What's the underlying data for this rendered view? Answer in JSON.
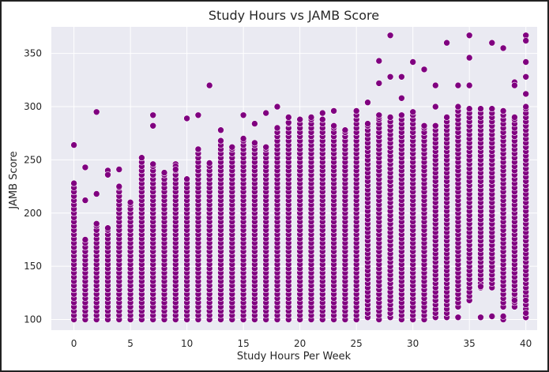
{
  "chart_data": {
    "type": "scatter",
    "title": "Study Hours vs JAMB Score",
    "xlabel": "Study Hours Per Week",
    "ylabel": "JAMB Score",
    "xlim": [
      -2,
      41
    ],
    "ylim": [
      90,
      375
    ],
    "xticks": [
      0,
      5,
      10,
      15,
      20,
      25,
      30,
      35,
      40
    ],
    "yticks": [
      100,
      150,
      200,
      250,
      300,
      350
    ],
    "grid": true,
    "background": "#eaeaf2",
    "gridColor": "#ffffff",
    "markerColor": "#800080",
    "series": [
      {
        "name": "",
        "columns": [
          {
            "x": 0,
            "min": 100,
            "max": 228
          },
          {
            "x": 1,
            "min": 100,
            "max": 175
          },
          {
            "x": 2,
            "min": 100,
            "max": 190
          },
          {
            "x": 3,
            "min": 100,
            "max": 186
          },
          {
            "x": 4,
            "min": 100,
            "max": 225
          },
          {
            "x": 5,
            "min": 100,
            "max": 210
          },
          {
            "x": 6,
            "min": 100,
            "max": 252
          },
          {
            "x": 7,
            "min": 100,
            "max": 246
          },
          {
            "x": 8,
            "min": 100,
            "max": 238
          },
          {
            "x": 9,
            "min": 100,
            "max": 246
          },
          {
            "x": 10,
            "min": 100,
            "max": 232
          },
          {
            "x": 11,
            "min": 100,
            "max": 260
          },
          {
            "x": 12,
            "min": 100,
            "max": 247
          },
          {
            "x": 13,
            "min": 100,
            "max": 268
          },
          {
            "x": 14,
            "min": 100,
            "max": 262
          },
          {
            "x": 15,
            "min": 100,
            "max": 270
          },
          {
            "x": 16,
            "min": 100,
            "max": 266
          },
          {
            "x": 17,
            "min": 100,
            "max": 262
          },
          {
            "x": 18,
            "min": 100,
            "max": 280
          },
          {
            "x": 19,
            "min": 100,
            "max": 285
          },
          {
            "x": 20,
            "min": 100,
            "max": 288
          },
          {
            "x": 21,
            "min": 100,
            "max": 290
          },
          {
            "x": 22,
            "min": 100,
            "max": 288
          },
          {
            "x": 23,
            "min": 100,
            "max": 282
          },
          {
            "x": 24,
            "min": 100,
            "max": 278
          },
          {
            "x": 25,
            "min": 100,
            "max": 292
          },
          {
            "x": 26,
            "min": 102,
            "max": 284
          },
          {
            "x": 27,
            "min": 100,
            "max": 290
          },
          {
            "x": 28,
            "min": 102,
            "max": 290
          },
          {
            "x": 29,
            "min": 100,
            "max": 292
          },
          {
            "x": 30,
            "min": 100,
            "max": 295
          },
          {
            "x": 31,
            "min": 100,
            "max": 282
          },
          {
            "x": 32,
            "min": 102,
            "max": 282
          },
          {
            "x": 33,
            "min": 102,
            "max": 290
          },
          {
            "x": 34,
            "min": 112,
            "max": 300
          },
          {
            "x": 35,
            "min": 118,
            "max": 298
          },
          {
            "x": 36,
            "min": 130,
            "max": 298
          },
          {
            "x": 37,
            "min": 130,
            "max": 298
          },
          {
            "x": 38,
            "min": 112,
            "max": 296
          },
          {
            "x": 39,
            "min": 112,
            "max": 290
          },
          {
            "x": 40,
            "min": 102,
            "max": 300
          }
        ],
        "extra_points": [
          [
            0,
            264
          ],
          [
            1,
            243
          ],
          [
            1,
            212
          ],
          [
            2,
            295
          ],
          [
            2,
            218
          ],
          [
            3,
            240
          ],
          [
            3,
            236
          ],
          [
            4,
            241
          ],
          [
            7,
            292
          ],
          [
            7,
            282
          ],
          [
            8,
            238
          ],
          [
            9,
            244
          ],
          [
            9,
            241
          ],
          [
            10,
            289
          ],
          [
            11,
            292
          ],
          [
            12,
            320
          ],
          [
            13,
            278
          ],
          [
            15,
            292
          ],
          [
            16,
            284
          ],
          [
            17,
            294
          ],
          [
            18,
            300
          ],
          [
            19,
            290
          ],
          [
            22,
            294
          ],
          [
            23,
            296
          ],
          [
            25,
            296
          ],
          [
            26,
            304
          ],
          [
            27,
            343
          ],
          [
            27,
            322
          ],
          [
            27,
            292
          ],
          [
            28,
            367
          ],
          [
            28,
            328
          ],
          [
            29,
            328
          ],
          [
            29,
            308
          ],
          [
            30,
            342
          ],
          [
            31,
            335
          ],
          [
            32,
            320
          ],
          [
            32,
            300
          ],
          [
            33,
            360
          ],
          [
            34,
            320
          ],
          [
            35,
            367
          ],
          [
            35,
            346
          ],
          [
            35,
            320
          ],
          [
            36,
            131
          ],
          [
            37,
            360
          ],
          [
            37,
            103
          ],
          [
            38,
            355
          ],
          [
            38,
            100
          ],
          [
            38,
            103
          ],
          [
            39,
            323
          ],
          [
            39,
            320
          ],
          [
            39,
            118
          ],
          [
            40,
            367
          ],
          [
            40,
            362
          ],
          [
            40,
            342
          ],
          [
            40,
            328
          ],
          [
            40,
            312
          ],
          [
            40,
            118
          ],
          [
            40,
            106
          ],
          [
            36,
            102
          ],
          [
            34,
            102
          ]
        ]
      }
    ]
  }
}
